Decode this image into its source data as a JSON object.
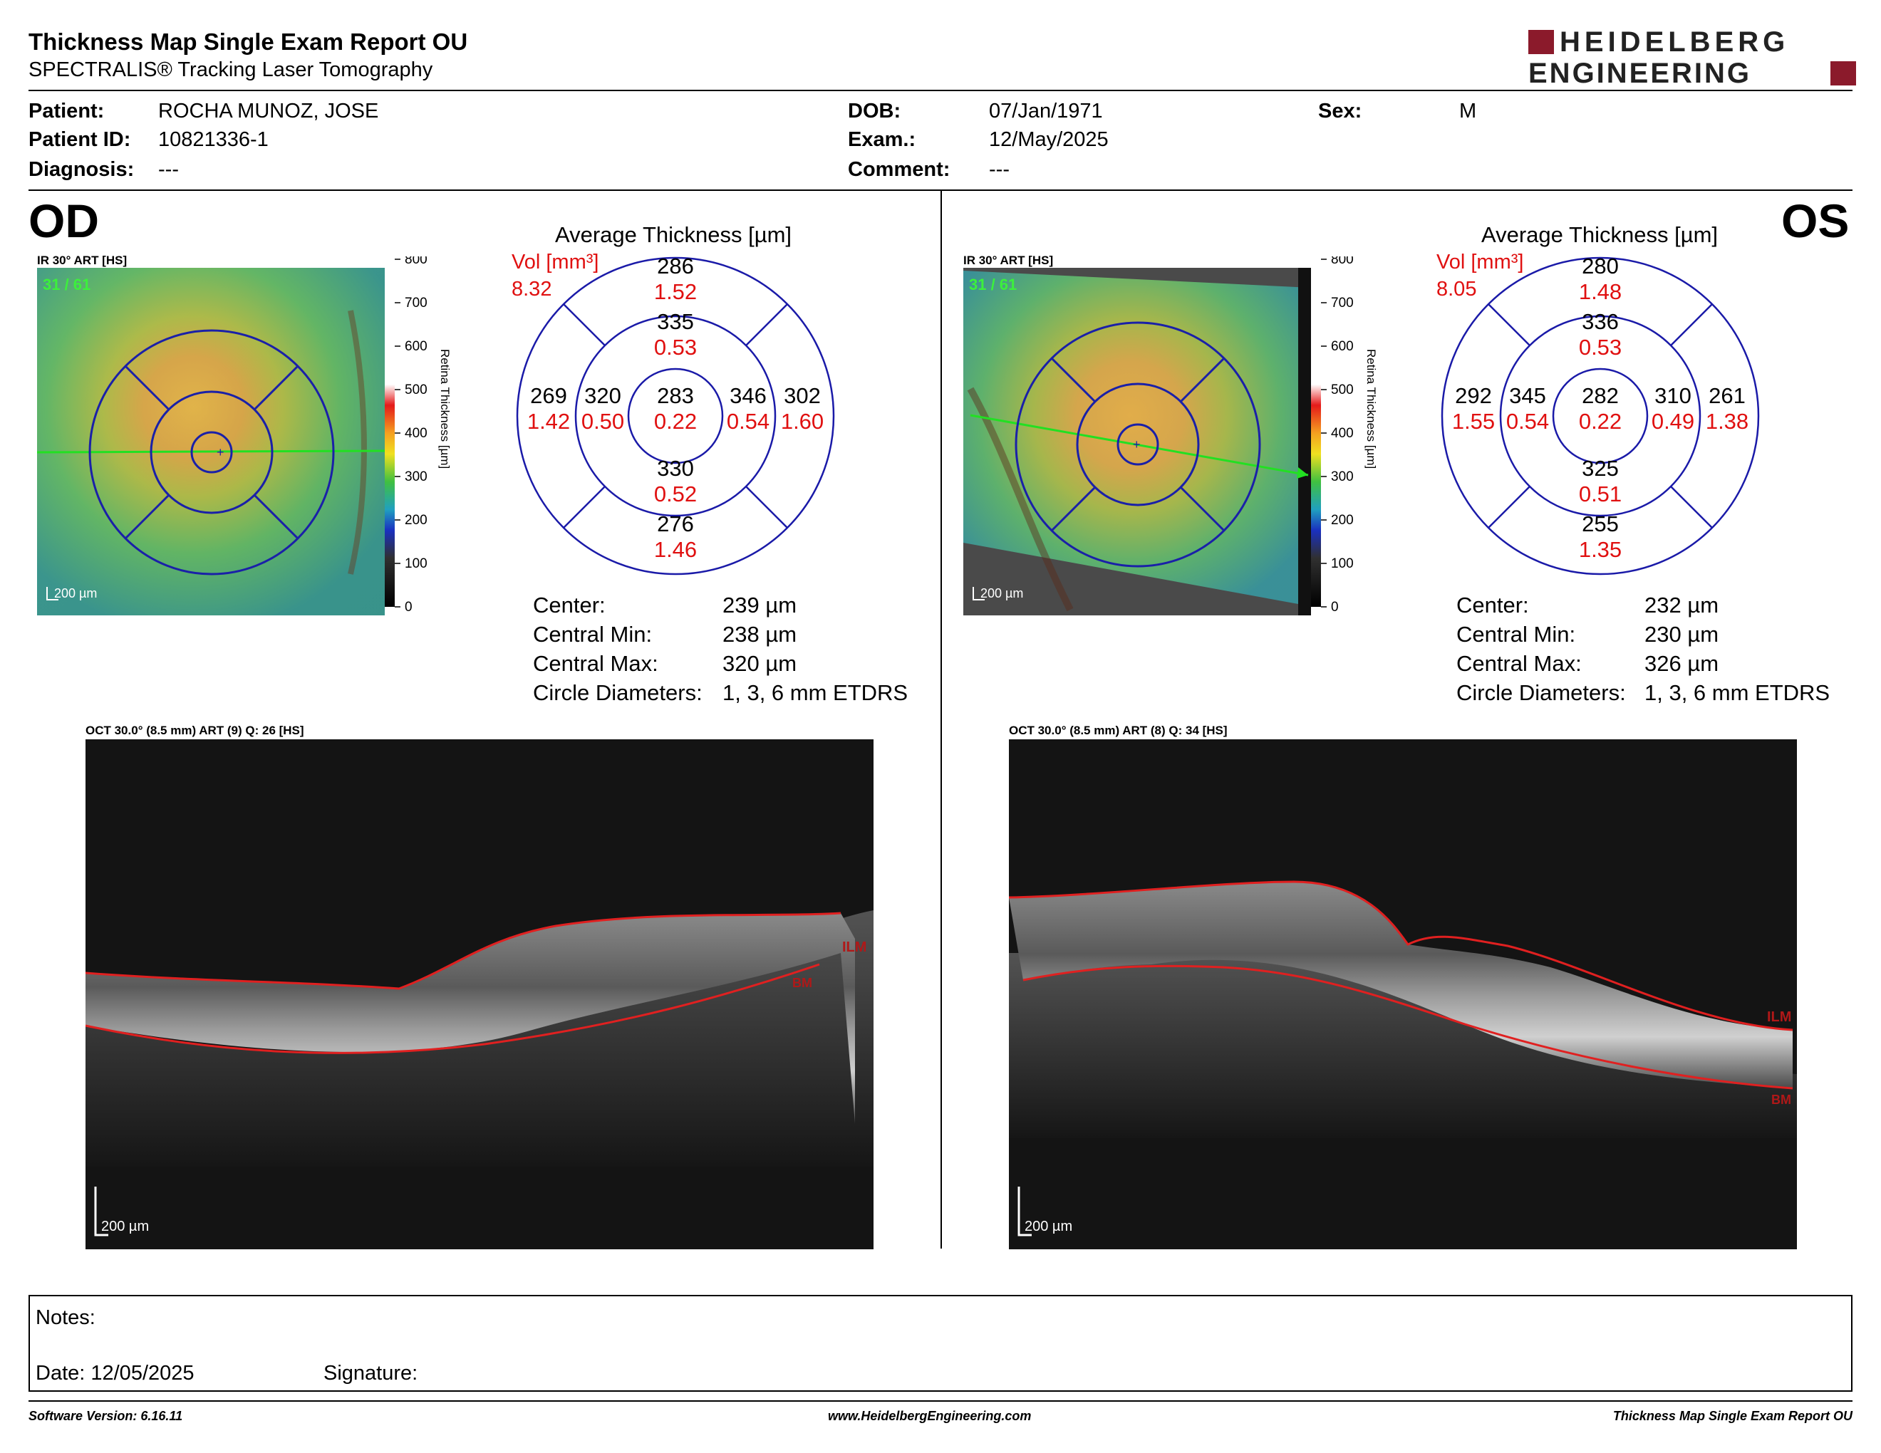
{
  "header": {
    "title": "Thickness Map Single Exam Report OU",
    "subtitle": "SPECTRALIS® Tracking Laser Tomography",
    "brand_line1": "HEIDELBERG",
    "brand_line2": "ENGINEERING",
    "brand_color": "#8b1a2b"
  },
  "patient": {
    "patient_label": "Patient:",
    "patient_value": "ROCHA MUNOZ, JOSE",
    "id_label": "Patient ID:",
    "id_value": "10821336-1",
    "diagnosis_label": "Diagnosis:",
    "diagnosis_value": "---",
    "dob_label": "DOB:",
    "dob_value": "07/Jan/1971",
    "exam_label": "Exam.:",
    "exam_value": "12/May/2025",
    "comment_label": "Comment:",
    "comment_value": "---",
    "sex_label": "Sex:",
    "sex_value": "M"
  },
  "scale": {
    "ticks": [
      "800",
      "700",
      "600",
      "500",
      "400",
      "300",
      "200",
      "100",
      "0"
    ],
    "axis_label": "Retina Thickness [µm]"
  },
  "eyes": {
    "od": {
      "label": "OD",
      "ir_caption": "IR 30° ART [HS]",
      "frame_counter": "31 / 61",
      "scalebar": "200 µm",
      "avg_title": "Average Thickness [µm]",
      "vol_label": "Vol [mm³]",
      "vol_total": "8.32",
      "grid": {
        "center": {
          "t": "283",
          "v": "0.22"
        },
        "inner_sup": {
          "t": "335",
          "v": "0.53"
        },
        "inner_inf": {
          "t": "330",
          "v": "0.52"
        },
        "inner_left": {
          "t": "320",
          "v": "0.50"
        },
        "inner_right": {
          "t": "346",
          "v": "0.54"
        },
        "outer_sup": {
          "t": "286",
          "v": "1.52"
        },
        "outer_inf": {
          "t": "276",
          "v": "1.46"
        },
        "outer_left": {
          "t": "269",
          "v": "1.42"
        },
        "outer_right": {
          "t": "302",
          "v": "1.60"
        }
      },
      "stats": [
        {
          "label": "Center:",
          "value": "239 µm"
        },
        {
          "label": "Central Min:",
          "value": "238 µm"
        },
        {
          "label": "Central Max:",
          "value": "320 µm"
        },
        {
          "label": "Circle Diameters:",
          "value": "1, 3, 6 mm ETDRS"
        }
      ],
      "oct_caption": "OCT 30.0° (8.5 mm) ART (9) Q: 26 [HS]",
      "oct_scalebar": "200 µm",
      "ilm": "ILM",
      "bm": "BM"
    },
    "os": {
      "label": "OS",
      "ir_caption": "IR 30° ART [HS]",
      "frame_counter": "31 / 61",
      "scalebar": "200 µm",
      "avg_title": "Average Thickness [µm]",
      "vol_label": "Vol [mm³]",
      "vol_total": "8.05",
      "grid": {
        "center": {
          "t": "282",
          "v": "0.22"
        },
        "inner_sup": {
          "t": "336",
          "v": "0.53"
        },
        "inner_inf": {
          "t": "325",
          "v": "0.51"
        },
        "inner_left": {
          "t": "345",
          "v": "0.54"
        },
        "inner_right": {
          "t": "310",
          "v": "0.49"
        },
        "outer_sup": {
          "t": "280",
          "v": "1.48"
        },
        "outer_inf": {
          "t": "255",
          "v": "1.35"
        },
        "outer_left": {
          "t": "292",
          "v": "1.55"
        },
        "outer_right": {
          "t": "261",
          "v": "1.38"
        }
      },
      "stats": [
        {
          "label": "Center:",
          "value": "232 µm"
        },
        {
          "label": "Central Min:",
          "value": "230 µm"
        },
        {
          "label": "Central Max:",
          "value": "326 µm"
        },
        {
          "label": "Circle Diameters:",
          "value": "1, 3, 6 mm ETDRS"
        }
      ],
      "oct_caption": "OCT 30.0° (8.5 mm) ART (8) Q: 34 [HS]",
      "oct_scalebar": "200 µm",
      "ilm": "ILM",
      "bm": "BM"
    }
  },
  "notes": {
    "notes_label": "Notes:",
    "date_label": "Date: 12/05/2025",
    "signature_label": "Signature:"
  },
  "footer": {
    "software": "Software Version: 6.16.11",
    "website": "www.HeidelbergEngineering.com",
    "report_name": "Thickness Map Single Exam Report OU"
  }
}
